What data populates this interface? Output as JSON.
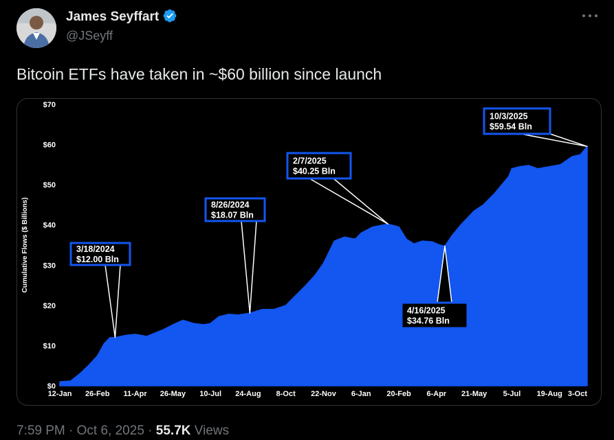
{
  "author": {
    "name": "James Seyffart",
    "handle": "@JSeyff"
  },
  "tweet": {
    "text": "Bitcoin ETFs have taken in ~$60 billion since launch"
  },
  "meta": {
    "time": "7:59 PM",
    "sep1": " · ",
    "date": "Oct 6, 2025",
    "sep2": " · ",
    "views_count": "55.7K",
    "views_label": " Views"
  },
  "colors": {
    "area": "#1356f0",
    "callout_border": "#1356f0",
    "background": "#000000",
    "verified": "#1d9bf0"
  },
  "icons": [
    "avatar",
    "verified-badge-icon",
    "more-options-icon"
  ],
  "chart_data": {
    "type": "area",
    "title": "",
    "xlabel": "",
    "ylabel": "Cumulative Flows ($ Billions)",
    "ylim": [
      0,
      70
    ],
    "yticks": [
      "$0",
      "$10",
      "$20",
      "$30",
      "$40",
      "$50",
      "$60",
      "$70"
    ],
    "xlim": [
      "2024-01-12",
      "2025-10-03"
    ],
    "xticks": [
      "12-Jan",
      "26-Feb",
      "11-Apr",
      "26-May",
      "10-Jul",
      "24-Aug",
      "8-Oct",
      "22-Nov",
      "6-Jan",
      "20-Feb",
      "6-Apr",
      "21-May",
      "5-Jul",
      "19-Aug",
      "3-Oct"
    ],
    "grid": false,
    "series": [
      {
        "dates": [
          "2024-01-12",
          "2024-01-25",
          "2024-02-05",
          "2024-02-15",
          "2024-02-26",
          "2024-03-05",
          "2024-03-12",
          "2024-03-18",
          "2024-03-25",
          "2024-04-01",
          "2024-04-11",
          "2024-04-25",
          "2024-05-03",
          "2024-05-15",
          "2024-05-26",
          "2024-06-07",
          "2024-06-20",
          "2024-07-02",
          "2024-07-10",
          "2024-07-20",
          "2024-08-01",
          "2024-08-12",
          "2024-08-26",
          "2024-09-10",
          "2024-09-24",
          "2024-10-08",
          "2024-10-20",
          "2024-11-01",
          "2024-11-12",
          "2024-11-22",
          "2024-12-05",
          "2024-12-17",
          "2024-12-30",
          "2025-01-06",
          "2025-01-20",
          "2025-02-07",
          "2025-02-20",
          "2025-03-01",
          "2025-03-10",
          "2025-03-20",
          "2025-04-01",
          "2025-04-10",
          "2025-04-16",
          "2025-04-25",
          "2025-05-05",
          "2025-05-21",
          "2025-06-01",
          "2025-06-15",
          "2025-07-01",
          "2025-07-05",
          "2025-07-14",
          "2025-07-25",
          "2025-08-05",
          "2025-08-19",
          "2025-09-01",
          "2025-09-15",
          "2025-09-25",
          "2025-10-03"
        ],
        "values": [
          1.0,
          1.2,
          3.0,
          5.0,
          7.5,
          10.5,
          12.0,
          12.0,
          12.3,
          12.6,
          12.8,
          12.3,
          13.0,
          14.0,
          15.2,
          16.3,
          15.5,
          15.2,
          15.5,
          17.2,
          17.8,
          17.6,
          18.07,
          19.0,
          19.0,
          20.0,
          22.5,
          25.0,
          27.5,
          30.5,
          36.0,
          37.0,
          36.5,
          38.0,
          39.5,
          40.25,
          39.5,
          36.5,
          35.3,
          36.0,
          35.8,
          35.0,
          34.76,
          37.5,
          40.0,
          43.5,
          45.0,
          48.0,
          52.0,
          54.0,
          54.5,
          54.8,
          54.0,
          54.5,
          55.0,
          57.0,
          57.5,
          59.54
        ]
      }
    ],
    "annotations": [
      {
        "date_label": "3/18/2024",
        "value_label": "$12.00 Bln",
        "x": "2024-03-18",
        "y": 12.0
      },
      {
        "date_label": "8/26/2024",
        "value_label": "$18.07 Bln",
        "x": "2024-08-26",
        "y": 18.07
      },
      {
        "date_label": "2/7/2025",
        "value_label": "$40.25 Bln",
        "x": "2025-02-07",
        "y": 40.25
      },
      {
        "date_label": "4/16/2025",
        "value_label": "$34.76 Bln",
        "x": "2025-04-16",
        "y": 34.76
      },
      {
        "date_label": "10/3/2025",
        "value_label": "$59.54 Bln",
        "x": "2025-10-03",
        "y": 59.54
      }
    ]
  }
}
